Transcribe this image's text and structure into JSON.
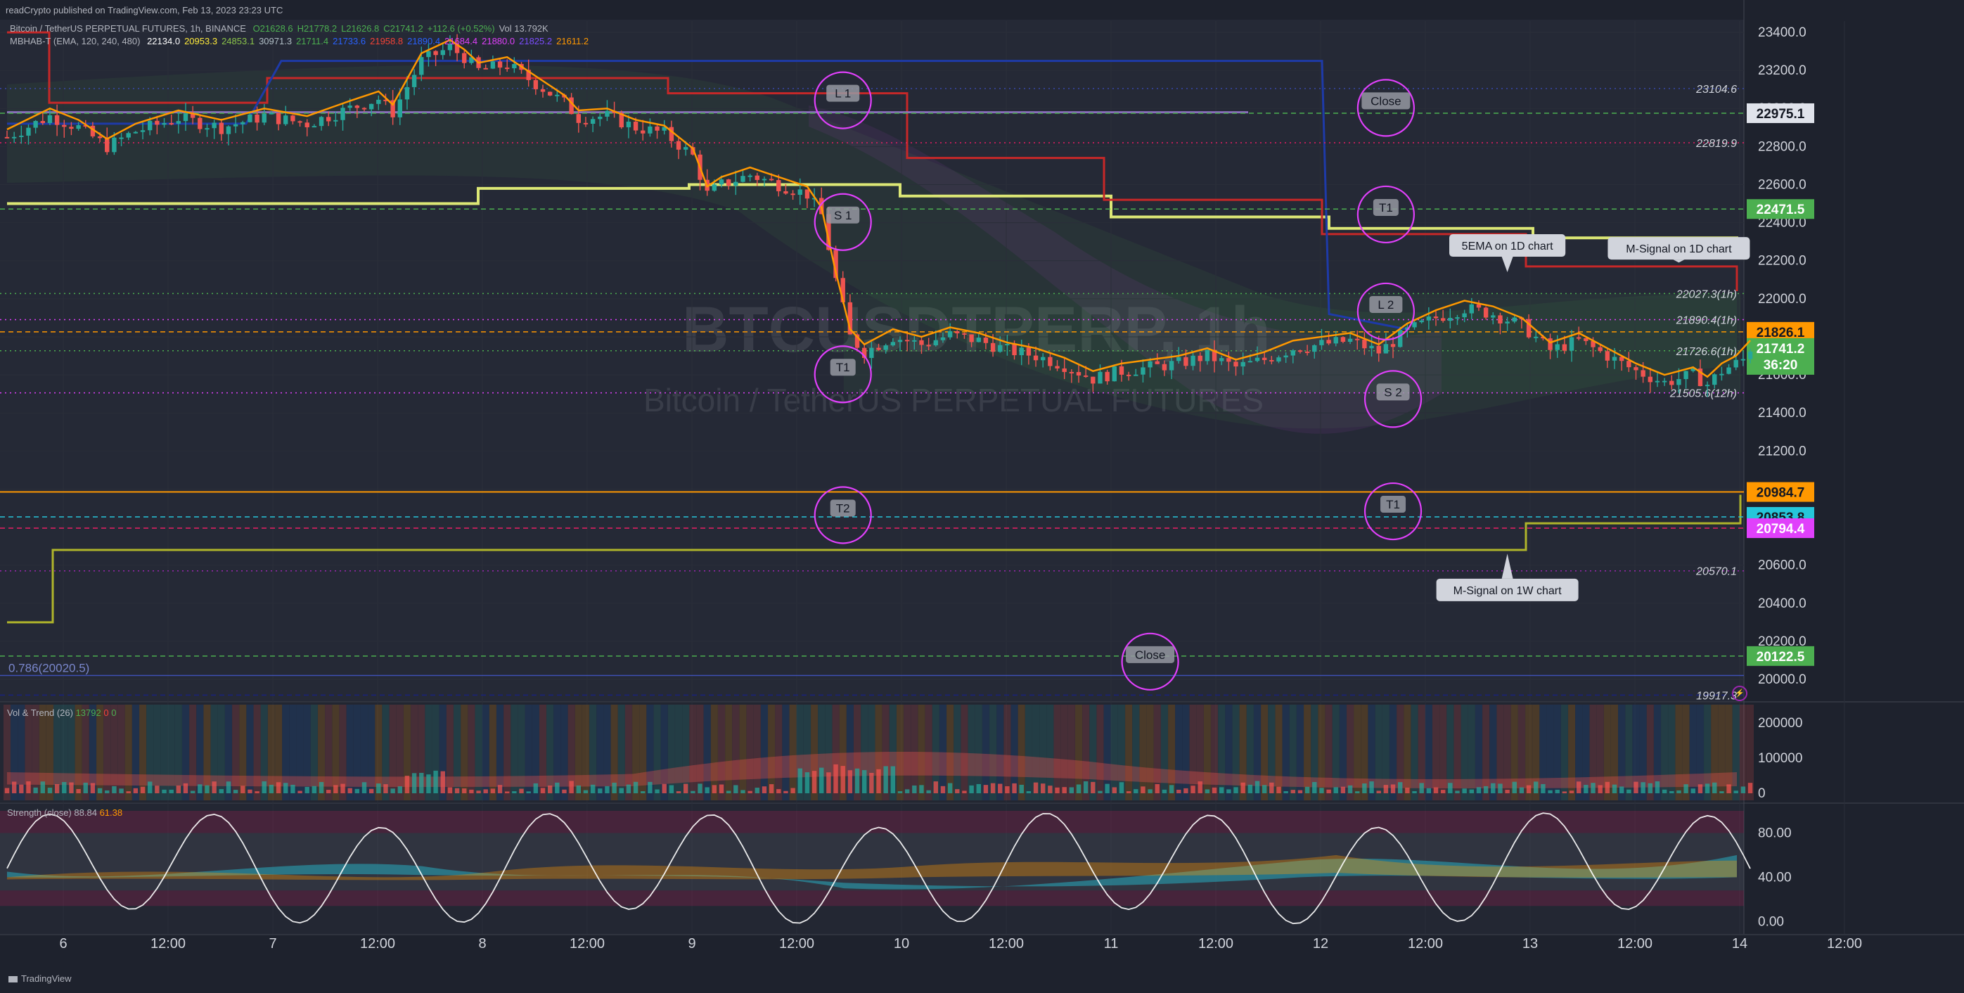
{
  "header": {
    "published": "readCrypto published on TradingView.com, Feb 13, 2023 23:23 UTC",
    "symbol_line": "Bitcoin / TetherUS PERPETUAL FUTURES, 1h, BINANCE",
    "ohlc": [
      "O21628.6",
      "H21778.2",
      "L21626.8",
      "C21741.2",
      "+112.6 (+0.52%)",
      "Vol 13.792K"
    ],
    "indicator_line": "MBHAB-T (EMA, 120, 240, 480)",
    "indicator_values": [
      "22134.0",
      "20953.3",
      "24853.1",
      "30971.3",
      "21711.4",
      "21733.6",
      "21958.8",
      "21890.4",
      "21684.4",
      "21880.0",
      "21825.2",
      "21611.2"
    ],
    "indicator_colors": [
      "#ffffff",
      "#ffeb3b",
      "#8bc34a",
      "#b0bec5",
      "#4caf50",
      "#2962ff",
      "#f44336",
      "#2962ff",
      "#e040fb",
      "#e040fb",
      "#7c4dff",
      "#ff9800"
    ]
  },
  "watermark": {
    "line1": "BTCUSDTPERP, 1h",
    "line2": "Bitcoin / TetherUS PERPETUAL FUTURES"
  },
  "footer": {
    "brand": "TradingView"
  },
  "chart_data": [
    {
      "type": "candlestick",
      "title": "BTCUSDTPERP, 1h",
      "ylim": [
        19800,
        23520
      ],
      "x_ticks": [
        "6",
        "12:00",
        "7",
        "12:00",
        "8",
        "12:00",
        "9",
        "12:00",
        "10",
        "12:00",
        "11",
        "12:00",
        "12",
        "12:00",
        "13",
        "12:00",
        "14",
        "12:00"
      ],
      "y_ticks": [
        20000,
        20200,
        20400,
        20600,
        20800,
        21000,
        21200,
        21400,
        21600,
        21800,
        22000,
        22200,
        22400,
        22600,
        22800,
        23000,
        23200,
        23400
      ],
      "y_tick_labels": [
        "20000.0",
        "20200.0",
        "20400.0",
        "20600.0",
        "20800.0",
        "21000.0",
        "21200.0",
        "21400.0",
        "21600.0",
        "21800.0",
        "22000.0",
        "22200.0",
        "22400.0",
        "22600.0",
        "22800.0",
        "23000.0",
        "23200.0",
        "23400.0"
      ],
      "close_path": [
        [
          0,
          22850
        ],
        [
          6,
          22960
        ],
        [
          10,
          22900
        ],
        [
          14,
          22800
        ],
        [
          18,
          22880
        ],
        [
          24,
          22950
        ],
        [
          30,
          22900
        ],
        [
          36,
          22960
        ],
        [
          42,
          22920
        ],
        [
          48,
          23000
        ],
        [
          52,
          23050
        ],
        [
          54,
          22980
        ],
        [
          58,
          23250
        ],
        [
          62,
          23320
        ],
        [
          64,
          23270
        ],
        [
          66,
          23200
        ],
        [
          70,
          23230
        ],
        [
          74,
          23130
        ],
        [
          78,
          23030
        ],
        [
          80,
          22950
        ],
        [
          84,
          22960
        ],
        [
          88,
          22900
        ],
        [
          92,
          22870
        ],
        [
          96,
          22750
        ],
        [
          98,
          22550
        ],
        [
          100,
          22600
        ],
        [
          104,
          22650
        ],
        [
          108,
          22600
        ],
        [
          112,
          22550
        ],
        [
          114,
          22440
        ],
        [
          116,
          22100
        ],
        [
          118,
          21800
        ],
        [
          120,
          21720
        ],
        [
          124,
          21800
        ],
        [
          128,
          21760
        ],
        [
          132,
          21810
        ],
        [
          136,
          21780
        ],
        [
          140,
          21730
        ],
        [
          144,
          21700
        ],
        [
          148,
          21650
        ],
        [
          152,
          21580
        ],
        [
          156,
          21620
        ],
        [
          160,
          21640
        ],
        [
          164,
          21660
        ],
        [
          168,
          21700
        ],
        [
          172,
          21640
        ],
        [
          176,
          21680
        ],
        [
          180,
          21740
        ],
        [
          184,
          21760
        ],
        [
          188,
          21780
        ],
        [
          192,
          21720
        ],
        [
          196,
          21830
        ],
        [
          200,
          21900
        ],
        [
          204,
          21950
        ],
        [
          208,
          21920
        ],
        [
          212,
          21860
        ],
        [
          216,
          21730
        ],
        [
          220,
          21780
        ],
        [
          224,
          21700
        ],
        [
          228,
          21620
        ],
        [
          232,
          21560
        ],
        [
          236,
          21600
        ],
        [
          238,
          21550
        ],
        [
          240,
          21620
        ],
        [
          243,
          21680
        ],
        [
          244,
          21741.2
        ]
      ],
      "horizontal_levels": [
        {
          "label": "23104.6",
          "value": 23104.6,
          "color": "#3949ab",
          "style": "dotted"
        },
        {
          "label": "22975.1",
          "value": 22975.1,
          "color": "#4caf50",
          "style": "dashed",
          "badge": true,
          "badge_bg": "#e0e3eb",
          "badge_fg": "#131722"
        },
        {
          "label": "22819.9",
          "value": 22819.9,
          "color": "#e91e63",
          "style": "dotted"
        },
        {
          "label": "22471.5",
          "value": 22471.5,
          "color": "#4caf50",
          "style": "dashed",
          "badge": true,
          "badge_bg": "#4caf50",
          "badge_fg": "#ffffff"
        },
        {
          "label": "22027.3(1h)",
          "value": 22027.3,
          "color": "#4caf50",
          "style": "dotted"
        },
        {
          "label": "21890.4(1h)",
          "value": 21890.4,
          "color": "#e040fb",
          "style": "dotted"
        },
        {
          "label": "21826.1",
          "value": 21826.1,
          "color": "#ff9800",
          "style": "dashed",
          "badge": true,
          "badge_bg": "#ff9800",
          "badge_fg": "#131722"
        },
        {
          "label": "21726.6(1h)",
          "value": 21726.6,
          "color": "#4caf50",
          "style": "dotted"
        },
        {
          "label": "21505.6(12h)",
          "value": 21505.6,
          "color": "#e040fb",
          "style": "dotted"
        },
        {
          "label": "20984.7",
          "value": 20984.7,
          "color": "#ff9800",
          "style": "solid",
          "badge": true,
          "badge_bg": "#ff9800",
          "badge_fg": "#131722"
        },
        {
          "label": "20853.8",
          "value": 20853.8,
          "color": "#26c6da",
          "style": "dashed",
          "badge": true,
          "badge_bg": "#26c6da",
          "badge_fg": "#131722"
        },
        {
          "label": "20794.4",
          "value": 20794.4,
          "color": "#e91e63",
          "style": "dashed",
          "badge": true,
          "badge_bg": "#e040fb",
          "badge_fg": "#ffffff"
        },
        {
          "label": "20570.1",
          "value": 20570.1,
          "color": "#9c27b0",
          "style": "dotted"
        },
        {
          "label": "20122.5",
          "value": 20122.5,
          "color": "#4caf50",
          "style": "dashed",
          "badge": true,
          "badge_bg": "#4caf50",
          "badge_fg": "#ffffff"
        },
        {
          "label": "19917.3",
          "value": 19917.3,
          "color": "#1a237e",
          "style": "dashed"
        }
      ],
      "current_price": {
        "label": "21741.2",
        "countdown": "36:20",
        "color": "#4caf50"
      },
      "fib_label": "0.786(20020.5)",
      "fib_value": 20020.5,
      "callouts": [
        {
          "text": "5EMA on 1D chart",
          "x": 210,
          "y": 22280,
          "point_y": 22140
        },
        {
          "text": "M-Signal on 1D chart",
          "x": 234,
          "y": 22265,
          "point_y": 22190
        },
        {
          "text": "M-Signal on 1W chart",
          "x": 210,
          "y": 20470,
          "point_y": 20660
        }
      ],
      "circle_labels": [
        {
          "text": "L 1",
          "x": 117,
          "y": 23080
        },
        {
          "text": "S 1",
          "x": 117,
          "y": 22440
        },
        {
          "text": "T1",
          "x": 117,
          "y": 21640
        },
        {
          "text": "T2",
          "x": 117,
          "y": 20900
        },
        {
          "text": "Close",
          "x": 160,
          "y": 20130
        },
        {
          "text": "Close",
          "x": 193,
          "y": 23040
        },
        {
          "text": "T1",
          "x": 193,
          "y": 22480
        },
        {
          "text": "L 2",
          "x": 193,
          "y": 21970
        },
        {
          "text": "S 2",
          "x": 194,
          "y": 21510
        },
        {
          "text": "T1",
          "x": 194,
          "y": 20920
        }
      ]
    },
    {
      "type": "bar",
      "title": "Vol & Trend (26)",
      "header_values": [
        "13792",
        "0",
        "0"
      ],
      "ylim": [
        0,
        240000
      ],
      "y_tick_labels": [
        "0",
        "100000",
        "200000"
      ],
      "y_ticks": [
        0,
        100000,
        200000
      ]
    },
    {
      "type": "line",
      "title": "Strength (close)",
      "header_values": [
        "88.84",
        "61.38"
      ],
      "ylim": [
        -10,
        105
      ],
      "y_tick_labels": [
        "0.00",
        "40.00",
        "80.00"
      ],
      "y_ticks": [
        0,
        40,
        80
      ]
    }
  ]
}
